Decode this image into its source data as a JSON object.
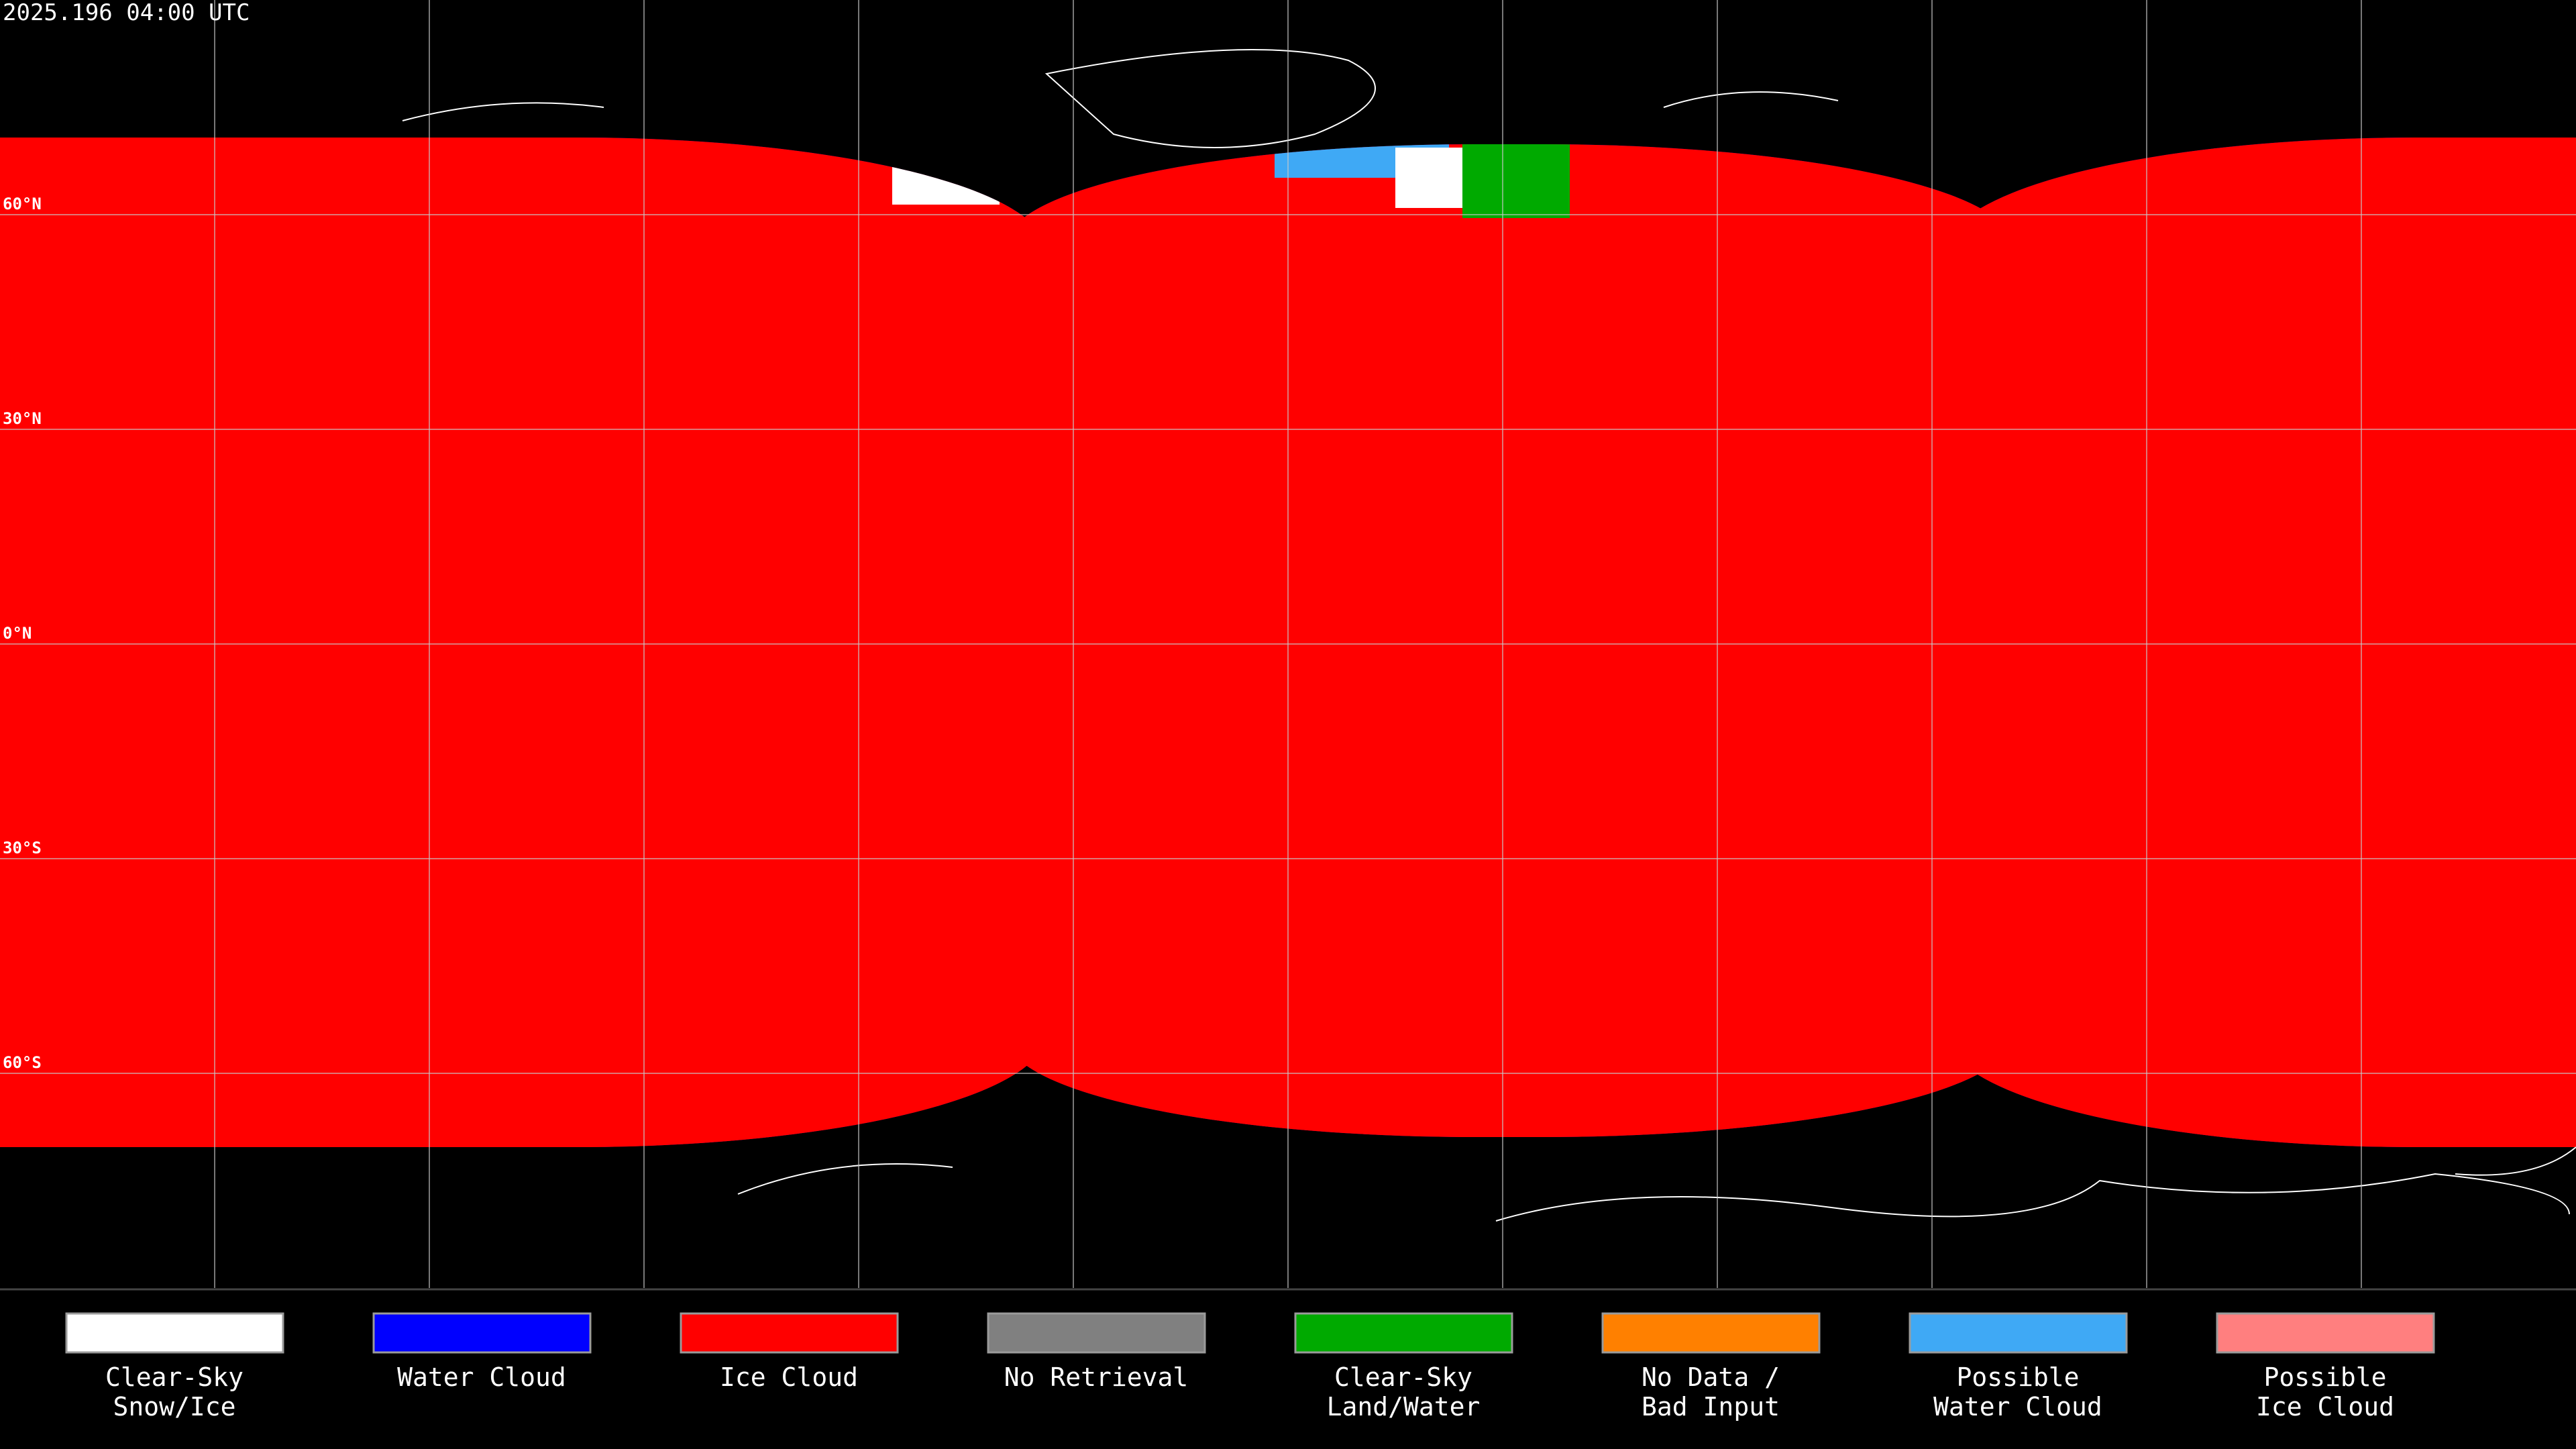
{
  "header": {
    "title": "2025.196 04:00 UTC"
  },
  "map": {
    "lat_lines": [
      {
        "value": 60,
        "label": "60°N"
      },
      {
        "value": 30,
        "label": "30°N"
      },
      {
        "value": 0,
        "label": "0°N"
      },
      {
        "value": -30,
        "label": "30°S"
      },
      {
        "value": -60,
        "label": "60°S"
      }
    ]
  },
  "legend": {
    "items": [
      {
        "label": [
          "Clear-Sky",
          "Snow/Ice"
        ],
        "color": "#ffffff"
      },
      {
        "label": [
          "Water Cloud"
        ],
        "color": "#0000ff"
      },
      {
        "label": [
          "Ice Cloud"
        ],
        "color": "#ff0000"
      },
      {
        "label": [
          "No Retrieval"
        ],
        "color": "#808080"
      },
      {
        "label": [
          "Clear-Sky",
          "Land/Water"
        ],
        "color": "#00aa00"
      },
      {
        "label": [
          "No Data /",
          "Bad Input"
        ],
        "color": "#ff8000"
      },
      {
        "label": [
          "Possible",
          "Water Cloud"
        ],
        "color": "#3fa9f5"
      },
      {
        "label": [
          "Possible",
          "Ice Cloud"
        ],
        "color": "#ff7f7f"
      }
    ]
  }
}
